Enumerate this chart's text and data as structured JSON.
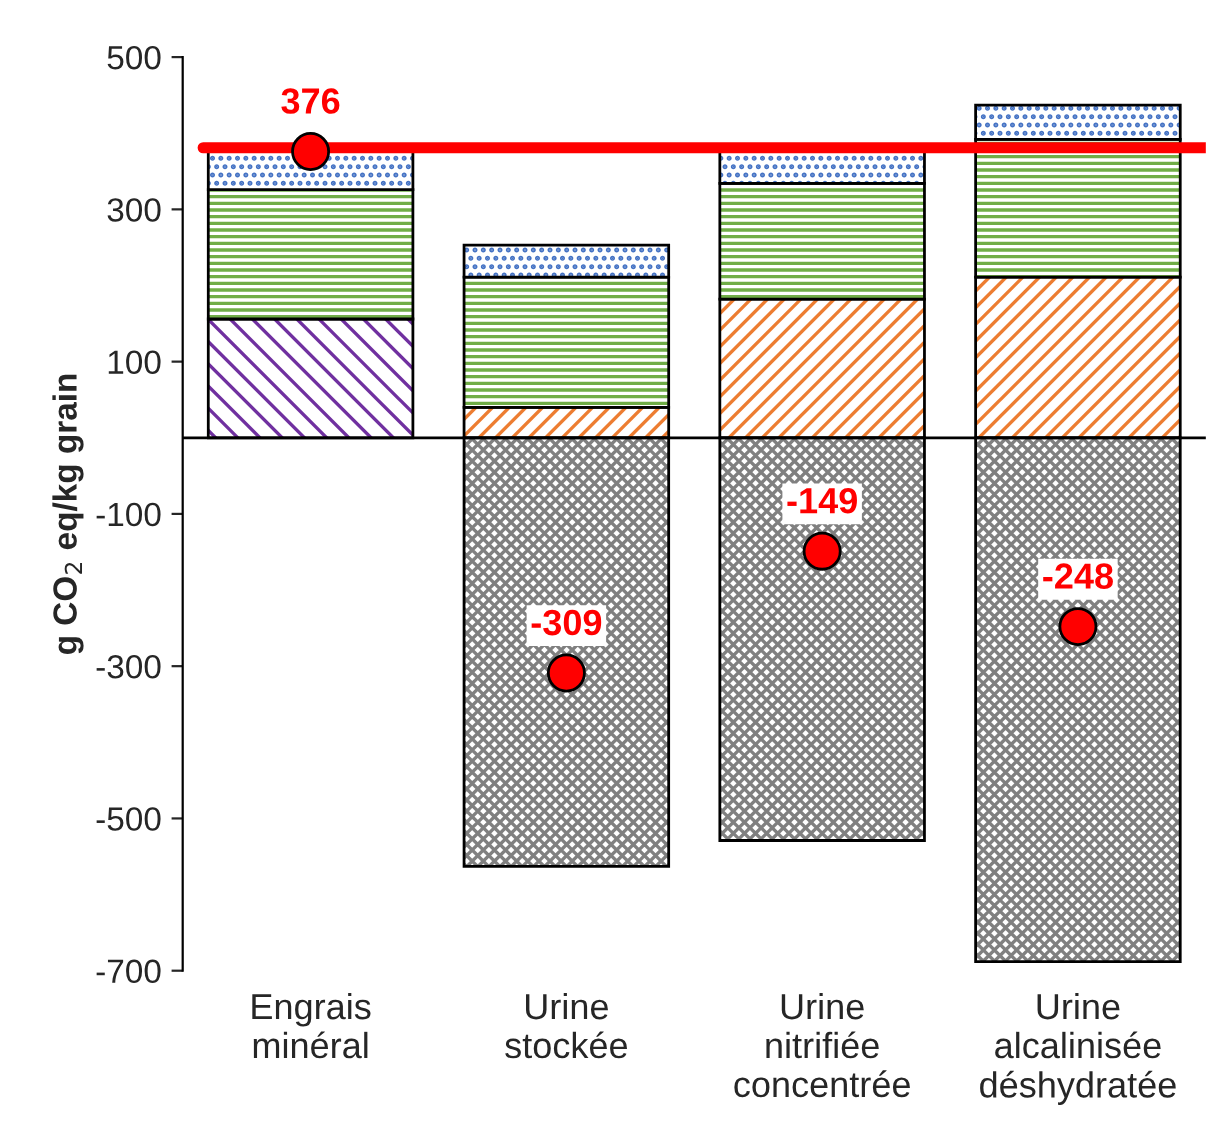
{
  "chart_data": {
    "type": "bar",
    "stacked": true,
    "ylabel": "g CO$_{2}$ eq/kg grain",
    "categories": [
      "Engrais\nminéral",
      "Urine\nstockée",
      "Urine\nnitrifiée\nconcentrée",
      "Urine\nalcalinisée\ndéshydratée"
    ],
    "ylim": [
      -700,
      500
    ],
    "yticks": [
      500,
      300,
      100,
      -100,
      -300,
      -500,
      -700
    ],
    "grid": false,
    "legend": false,
    "series": [
      {
        "color": "#7030a0",
        "values": [
          156,
          null,
          null,
          null
        ]
      },
      {
        "color": "#ed7d31",
        "values": [
          null,
          40,
          182,
          211
        ]
      },
      {
        "color": "#70ad47",
        "values": [
          170,
          171,
          152,
          181
        ]
      },
      {
        "color": "#4472c4",
        "values": [
          52,
          42,
          45,
          45
        ]
      },
      {
        "color": "#808080",
        "values": [
          null,
          -563,
          -529,
          -688
        ]
      },
      {
        "type": "scatter",
        "color": "#ff0000",
        "marker": "circle",
        "values": [
          376,
          -309,
          -149,
          -248
        ],
        "value_labels": [
          "376",
          "-309",
          "-149",
          "-248"
        ]
      }
    ],
    "ref_lines": [
      {
        "axis": "y",
        "value": 381,
        "color": "#ff0000",
        "line_style": "solid"
      }
    ]
  }
}
